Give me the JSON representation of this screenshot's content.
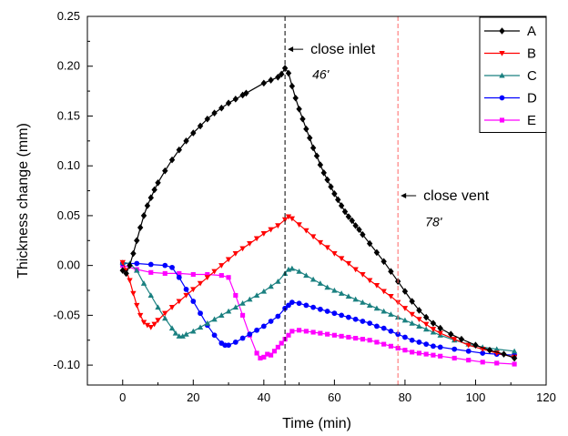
{
  "chart_data": {
    "type": "line",
    "title": "",
    "xlabel": "Time (min)",
    "ylabel": "Thickness change (mm)",
    "xlim": [
      -10,
      120
    ],
    "ylim": [
      -0.12,
      0.25
    ],
    "xticks": [
      0,
      20,
      40,
      60,
      80,
      100,
      120
    ],
    "yticks": [
      -0.1,
      -0.05,
      0.0,
      0.05,
      0.1,
      0.15,
      0.2,
      0.25
    ],
    "ytick_labels": [
      "-0.10",
      "-0.05",
      "0.00",
      "0.05",
      "0.10",
      "0.15",
      "0.20",
      "0.25"
    ],
    "grid": false,
    "legend_position": "top-right",
    "annotations": [
      {
        "id": "inlet",
        "x": 46,
        "label": "close inlet",
        "sublabel": "46'",
        "line_color": "#000000",
        "arrow_y": 0.217,
        "sublabel_y": 0.2
      },
      {
        "id": "vent",
        "x": 78,
        "label": "close vent",
        "sublabel": "78'",
        "line_color": "#ff6666",
        "arrow_y": 0.07,
        "sublabel_y": 0.052
      }
    ],
    "series": [
      {
        "name": "A",
        "color": "#000000",
        "marker": "diamond",
        "points": [
          [
            0,
            -0.005
          ],
          [
            1,
            -0.008
          ],
          [
            2,
            0.0
          ],
          [
            3,
            0.012
          ],
          [
            4,
            0.025
          ],
          [
            5,
            0.038
          ],
          [
            6,
            0.05
          ],
          [
            7,
            0.06
          ],
          [
            8,
            0.068
          ],
          [
            9,
            0.076
          ],
          [
            10,
            0.083
          ],
          [
            12,
            0.095
          ],
          [
            14,
            0.106
          ],
          [
            16,
            0.116
          ],
          [
            18,
            0.125
          ],
          [
            20,
            0.133
          ],
          [
            22,
            0.14
          ],
          [
            24,
            0.147
          ],
          [
            26,
            0.153
          ],
          [
            28,
            0.158
          ],
          [
            30,
            0.163
          ],
          [
            32,
            0.167
          ],
          [
            34,
            0.171
          ],
          [
            35,
            0.173
          ],
          [
            40,
            0.183
          ],
          [
            42,
            0.186
          ],
          [
            44,
            0.189
          ],
          [
            45,
            0.192
          ],
          [
            46,
            0.198
          ],
          [
            47,
            0.193
          ],
          [
            48,
            0.18
          ],
          [
            49,
            0.168
          ],
          [
            50,
            0.157
          ],
          [
            51,
            0.147
          ],
          [
            52,
            0.137
          ],
          [
            53,
            0.128
          ],
          [
            54,
            0.118
          ],
          [
            55,
            0.11
          ],
          [
            56,
            0.101
          ],
          [
            57,
            0.093
          ],
          [
            58,
            0.086
          ],
          [
            59,
            0.079
          ],
          [
            60,
            0.072
          ],
          [
            61,
            0.066
          ],
          [
            62,
            0.06
          ],
          [
            63,
            0.054
          ],
          [
            64,
            0.049
          ],
          [
            65,
            0.045
          ],
          [
            66,
            0.04
          ],
          [
            67,
            0.036
          ],
          [
            68,
            0.031
          ],
          [
            70,
            0.022
          ],
          [
            72,
            0.013
          ],
          [
            74,
            0.004
          ],
          [
            76,
            -0.006
          ],
          [
            78,
            -0.016
          ],
          [
            80,
            -0.026
          ],
          [
            82,
            -0.036
          ],
          [
            84,
            -0.045
          ],
          [
            86,
            -0.052
          ],
          [
            88,
            -0.058
          ],
          [
            90,
            -0.063
          ],
          [
            93,
            -0.069
          ],
          [
            96,
            -0.074
          ],
          [
            100,
            -0.08
          ],
          [
            104,
            -0.085
          ],
          [
            108,
            -0.089
          ],
          [
            111,
            -0.093
          ]
        ]
      },
      {
        "name": "B",
        "color": "#ff0000",
        "marker": "triangle-down",
        "points": [
          [
            0,
            0.003
          ],
          [
            1,
            -0.005
          ],
          [
            2,
            -0.015
          ],
          [
            3,
            -0.028
          ],
          [
            4,
            -0.04
          ],
          [
            5,
            -0.05
          ],
          [
            6,
            -0.057
          ],
          [
            7,
            -0.06
          ],
          [
            8,
            -0.062
          ],
          [
            9,
            -0.059
          ],
          [
            10,
            -0.055
          ],
          [
            12,
            -0.048
          ],
          [
            14,
            -0.042
          ],
          [
            16,
            -0.036
          ],
          [
            18,
            -0.03
          ],
          [
            20,
            -0.024
          ],
          [
            22,
            -0.018
          ],
          [
            24,
            -0.012
          ],
          [
            26,
            -0.006
          ],
          [
            28,
            0.0
          ],
          [
            30,
            0.006
          ],
          [
            32,
            0.012
          ],
          [
            34,
            0.017
          ],
          [
            36,
            0.022
          ],
          [
            38,
            0.027
          ],
          [
            40,
            0.032
          ],
          [
            42,
            0.036
          ],
          [
            44,
            0.04
          ],
          [
            46,
            0.046
          ],
          [
            47,
            0.049
          ],
          [
            48,
            0.047
          ],
          [
            50,
            0.041
          ],
          [
            52,
            0.035
          ],
          [
            54,
            0.029
          ],
          [
            56,
            0.023
          ],
          [
            58,
            0.018
          ],
          [
            60,
            0.012
          ],
          [
            62,
            0.007
          ],
          [
            64,
            0.002
          ],
          [
            66,
            -0.004
          ],
          [
            68,
            -0.009
          ],
          [
            70,
            -0.015
          ],
          [
            72,
            -0.02
          ],
          [
            74,
            -0.026
          ],
          [
            76,
            -0.031
          ],
          [
            78,
            -0.037
          ],
          [
            80,
            -0.043
          ],
          [
            82,
            -0.049
          ],
          [
            84,
            -0.054
          ],
          [
            86,
            -0.059
          ],
          [
            88,
            -0.064
          ],
          [
            90,
            -0.068
          ],
          [
            94,
            -0.074
          ],
          [
            98,
            -0.08
          ],
          [
            102,
            -0.084
          ],
          [
            106,
            -0.088
          ],
          [
            111,
            -0.092
          ]
        ]
      },
      {
        "name": "C",
        "color": "#1a8080",
        "marker": "triangle-up",
        "points": [
          [
            0,
            0.003
          ],
          [
            2,
            0.002
          ],
          [
            4,
            -0.005
          ],
          [
            6,
            -0.018
          ],
          [
            8,
            -0.03
          ],
          [
            10,
            -0.042
          ],
          [
            12,
            -0.053
          ],
          [
            14,
            -0.063
          ],
          [
            15,
            -0.068
          ],
          [
            16,
            -0.071
          ],
          [
            17,
            -0.071
          ],
          [
            18,
            -0.069
          ],
          [
            20,
            -0.066
          ],
          [
            22,
            -0.062
          ],
          [
            24,
            -0.058
          ],
          [
            26,
            -0.054
          ],
          [
            28,
            -0.05
          ],
          [
            30,
            -0.046
          ],
          [
            32,
            -0.042
          ],
          [
            34,
            -0.038
          ],
          [
            36,
            -0.034
          ],
          [
            38,
            -0.03
          ],
          [
            40,
            -0.026
          ],
          [
            42,
            -0.021
          ],
          [
            44,
            -0.016
          ],
          [
            46,
            -0.008
          ],
          [
            47,
            -0.004
          ],
          [
            48,
            -0.003
          ],
          [
            50,
            -0.006
          ],
          [
            52,
            -0.01
          ],
          [
            54,
            -0.014
          ],
          [
            56,
            -0.018
          ],
          [
            58,
            -0.022
          ],
          [
            60,
            -0.025
          ],
          [
            62,
            -0.028
          ],
          [
            64,
            -0.031
          ],
          [
            66,
            -0.034
          ],
          [
            68,
            -0.037
          ],
          [
            70,
            -0.04
          ],
          [
            72,
            -0.043
          ],
          [
            74,
            -0.046
          ],
          [
            76,
            -0.049
          ],
          [
            78,
            -0.052
          ],
          [
            80,
            -0.055
          ],
          [
            82,
            -0.058
          ],
          [
            84,
            -0.061
          ],
          [
            86,
            -0.064
          ],
          [
            88,
            -0.067
          ],
          [
            90,
            -0.07
          ],
          [
            94,
            -0.075
          ],
          [
            98,
            -0.079
          ],
          [
            102,
            -0.082
          ],
          [
            106,
            -0.084
          ],
          [
            111,
            -0.086
          ]
        ]
      },
      {
        "name": "D",
        "color": "#0000ff",
        "marker": "circle",
        "points": [
          [
            0,
            0.002
          ],
          [
            4,
            0.002
          ],
          [
            8,
            0.001
          ],
          [
            12,
            0.0
          ],
          [
            14,
            -0.002
          ],
          [
            16,
            -0.012
          ],
          [
            18,
            -0.024
          ],
          [
            20,
            -0.036
          ],
          [
            22,
            -0.048
          ],
          [
            24,
            -0.06
          ],
          [
            26,
            -0.07
          ],
          [
            28,
            -0.078
          ],
          [
            29,
            -0.08
          ],
          [
            30,
            -0.08
          ],
          [
            32,
            -0.077
          ],
          [
            34,
            -0.073
          ],
          [
            36,
            -0.069
          ],
          [
            38,
            -0.065
          ],
          [
            40,
            -0.061
          ],
          [
            42,
            -0.056
          ],
          [
            44,
            -0.051
          ],
          [
            46,
            -0.043
          ],
          [
            47,
            -0.04
          ],
          [
            48,
            -0.037
          ],
          [
            50,
            -0.038
          ],
          [
            52,
            -0.04
          ],
          [
            54,
            -0.042
          ],
          [
            56,
            -0.044
          ],
          [
            58,
            -0.046
          ],
          [
            60,
            -0.048
          ],
          [
            62,
            -0.05
          ],
          [
            64,
            -0.052
          ],
          [
            66,
            -0.054
          ],
          [
            68,
            -0.056
          ],
          [
            70,
            -0.058
          ],
          [
            72,
            -0.061
          ],
          [
            74,
            -0.063
          ],
          [
            76,
            -0.066
          ],
          [
            78,
            -0.069
          ],
          [
            80,
            -0.072
          ],
          [
            82,
            -0.075
          ],
          [
            84,
            -0.077
          ],
          [
            86,
            -0.079
          ],
          [
            88,
            -0.081
          ],
          [
            90,
            -0.082
          ],
          [
            94,
            -0.084
          ],
          [
            98,
            -0.086
          ],
          [
            102,
            -0.088
          ],
          [
            106,
            -0.089
          ],
          [
            111,
            -0.09
          ]
        ]
      },
      {
        "name": "E",
        "color": "#ff00ff",
        "marker": "square",
        "points": [
          [
            0,
            0.0
          ],
          [
            4,
            -0.004
          ],
          [
            8,
            -0.007
          ],
          [
            12,
            -0.008
          ],
          [
            16,
            -0.008
          ],
          [
            20,
            -0.009
          ],
          [
            24,
            -0.009
          ],
          [
            28,
            -0.01
          ],
          [
            30,
            -0.012
          ],
          [
            32,
            -0.03
          ],
          [
            34,
            -0.05
          ],
          [
            36,
            -0.07
          ],
          [
            38,
            -0.088
          ],
          [
            39,
            -0.093
          ],
          [
            40,
            -0.092
          ],
          [
            41,
            -0.089
          ],
          [
            42,
            -0.09
          ],
          [
            43,
            -0.086
          ],
          [
            44,
            -0.082
          ],
          [
            45,
            -0.078
          ],
          [
            46,
            -0.074
          ],
          [
            47,
            -0.07
          ],
          [
            48,
            -0.066
          ],
          [
            50,
            -0.065
          ],
          [
            52,
            -0.066
          ],
          [
            54,
            -0.067
          ],
          [
            56,
            -0.068
          ],
          [
            58,
            -0.069
          ],
          [
            60,
            -0.07
          ],
          [
            62,
            -0.071
          ],
          [
            64,
            -0.072
          ],
          [
            66,
            -0.073
          ],
          [
            68,
            -0.074
          ],
          [
            70,
            -0.075
          ],
          [
            72,
            -0.077
          ],
          [
            74,
            -0.079
          ],
          [
            76,
            -0.081
          ],
          [
            78,
            -0.083
          ],
          [
            80,
            -0.085
          ],
          [
            82,
            -0.087
          ],
          [
            84,
            -0.088
          ],
          [
            86,
            -0.089
          ],
          [
            88,
            -0.09
          ],
          [
            90,
            -0.091
          ],
          [
            94,
            -0.093
          ],
          [
            98,
            -0.095
          ],
          [
            102,
            -0.097
          ],
          [
            106,
            -0.098
          ],
          [
            111,
            -0.099
          ]
        ]
      }
    ]
  }
}
